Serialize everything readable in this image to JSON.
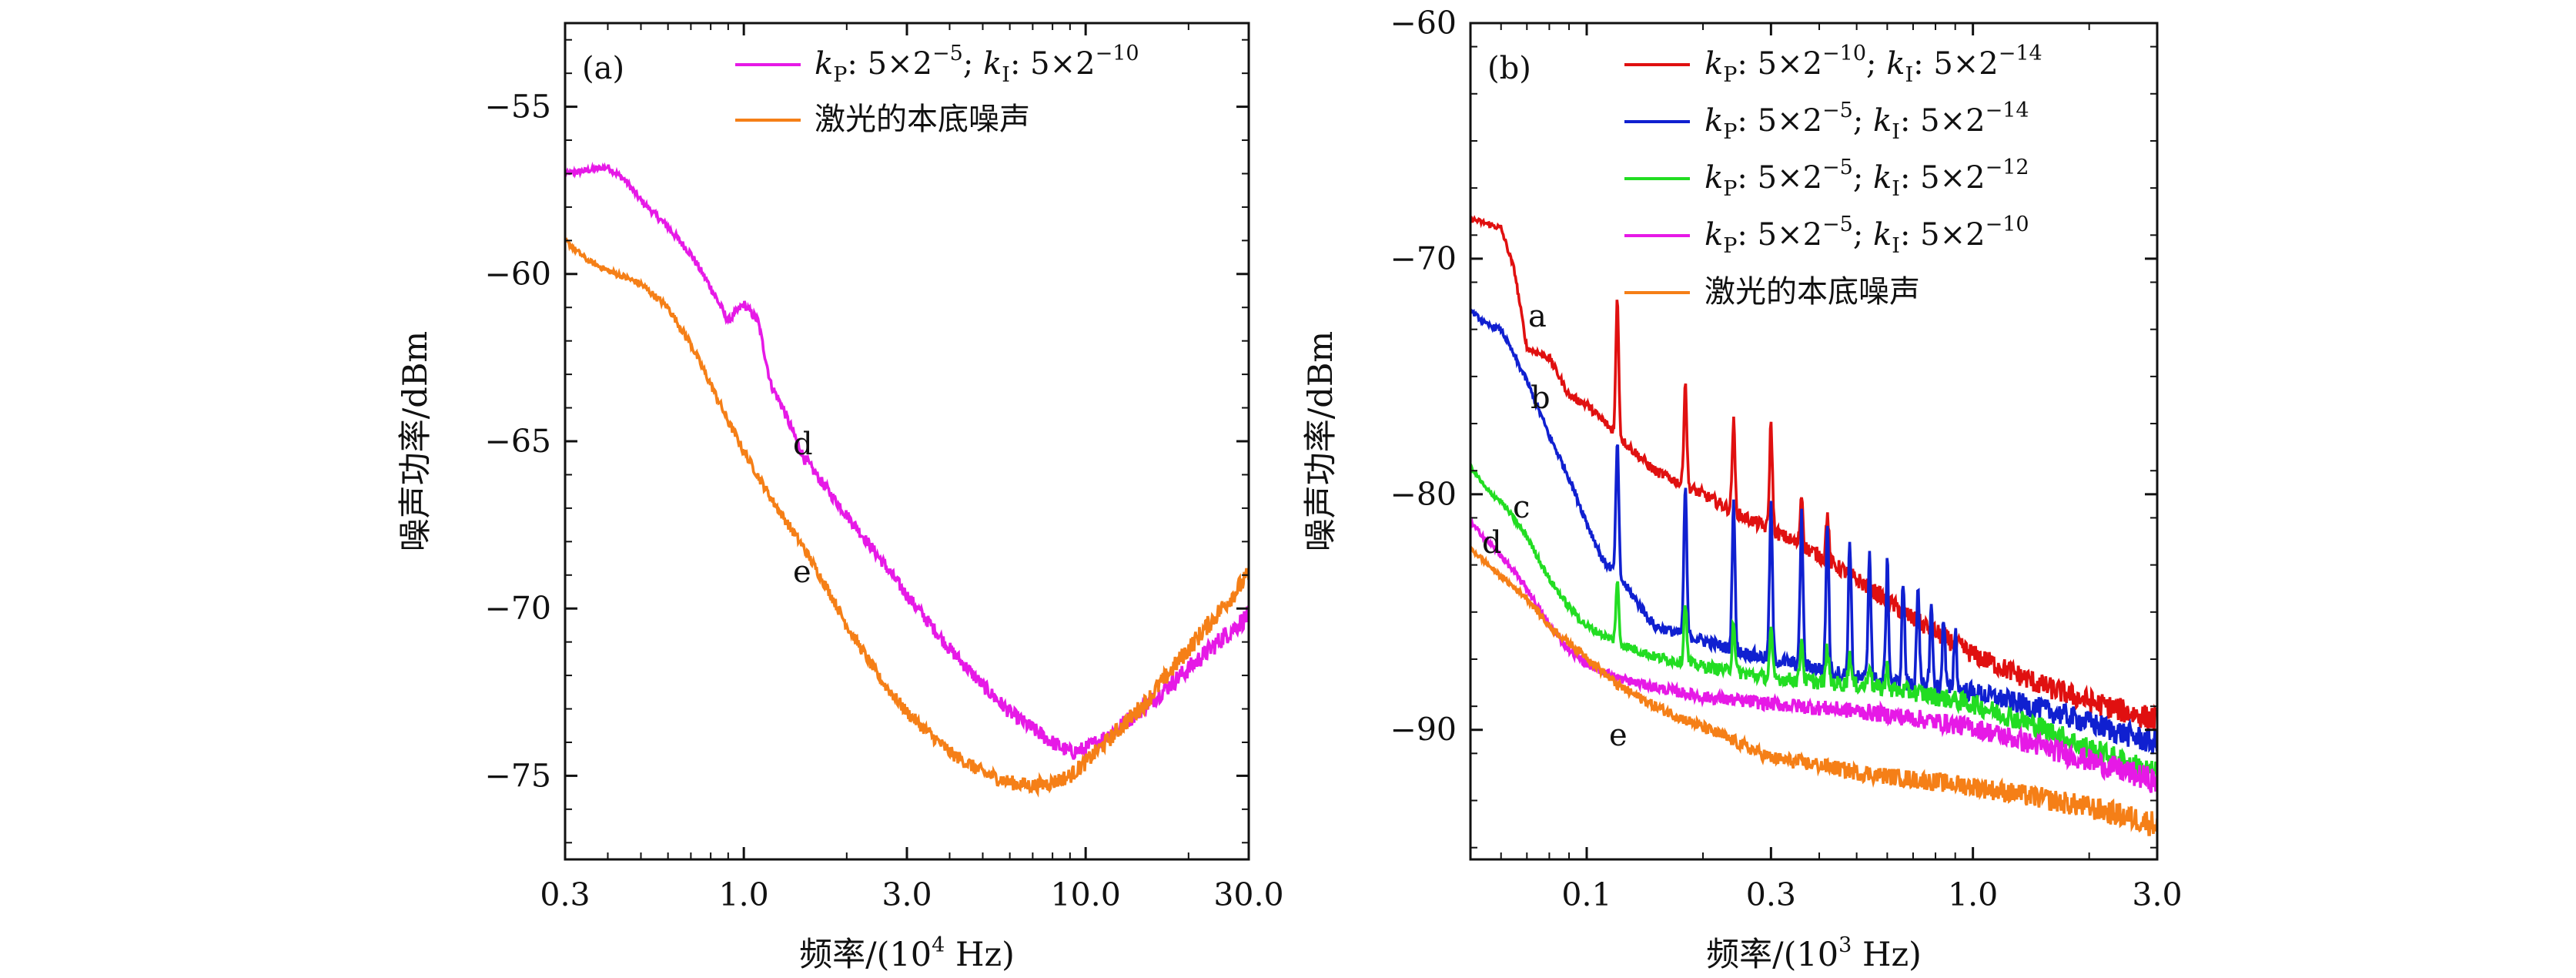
{
  "chart_data": [
    {
      "panel": "(a)",
      "type": "line",
      "xlabel": "频率/(10⁴ Hz)",
      "ylabel": "噪声功率/dBm",
      "xscale": "log",
      "xlim": [
        0.3,
        30.0
      ],
      "ylim": [
        -77.5,
        -52.5
      ],
      "xticks": [
        "0.3",
        "1.0",
        "3.0",
        "10.0",
        "30.0"
      ],
      "yticks": [
        "−55",
        "−60",
        "−65",
        "−70",
        "−75"
      ],
      "legend_position": "top-right",
      "series": [
        {
          "name": "kP: 5×2^−5; kI: 5×2^−10",
          "label": "d",
          "color": "#e619e6",
          "x": [
            0.3,
            0.35,
            0.4,
            0.45,
            0.5,
            0.6,
            0.7,
            0.8,
            0.9,
            1.0,
            1.1,
            1.2,
            1.3,
            1.5,
            1.8,
            2.0,
            2.5,
            3.0,
            4.0,
            5.0,
            6.0,
            7.0,
            8.0,
            9.0,
            10.0,
            12.0,
            15.0,
            20.0,
            25.0,
            30.0
          ],
          "values": [
            -57.0,
            -56.9,
            -56.8,
            -57.2,
            -57.8,
            -58.6,
            -59.4,
            -60.4,
            -61.4,
            -60.9,
            -61.4,
            -63.3,
            -64.0,
            -65.5,
            -66.6,
            -67.2,
            -68.5,
            -69.6,
            -71.2,
            -72.3,
            -73.1,
            -73.6,
            -74.0,
            -74.3,
            -74.2,
            -73.7,
            -72.9,
            -71.8,
            -70.9,
            -70.2
          ]
        },
        {
          "name": "激光的本底噪声",
          "label": "e",
          "color": "#f57f17",
          "x": [
            0.3,
            0.35,
            0.4,
            0.45,
            0.5,
            0.6,
            0.7,
            0.8,
            0.9,
            1.0,
            1.2,
            1.5,
            1.8,
            2.0,
            2.5,
            3.0,
            4.0,
            5.0,
            6.0,
            7.0,
            8.0,
            9.0,
            10.0,
            12.0,
            15.0,
            20.0,
            25.0,
            30.0
          ],
          "values": [
            -59.0,
            -59.6,
            -59.9,
            -60.1,
            -60.3,
            -61.0,
            -62.1,
            -63.3,
            -64.4,
            -65.3,
            -66.7,
            -68.2,
            -69.6,
            -70.5,
            -72.1,
            -73.1,
            -74.3,
            -74.9,
            -75.2,
            -75.3,
            -75.2,
            -75.0,
            -74.6,
            -73.8,
            -72.8,
            -71.2,
            -70.0,
            -69.0
          ]
        }
      ]
    },
    {
      "panel": "(b)",
      "type": "line",
      "xlabel": "频率/(10³ Hz)",
      "ylabel": "噪声功率/dBm",
      "xscale": "log",
      "xlim": [
        0.05,
        3.0
      ],
      "ylim": [
        -95.5,
        -60
      ],
      "xticks": [
        "0.1",
        "0.3",
        "1.0",
        "3.0"
      ],
      "yticks": [
        "−60",
        "−70",
        "−80",
        "−90"
      ],
      "legend_position": "top-right",
      "series": [
        {
          "name": "kP: 5×2^−10; kI: 5×2^−14",
          "label": "a",
          "color": "#e01010",
          "x": [
            0.05,
            0.06,
            0.065,
            0.07,
            0.08,
            0.09,
            0.1,
            0.12,
            0.15,
            0.2,
            0.25,
            0.3,
            0.4,
            0.5,
            0.7,
            1.0,
            1.5,
            2.0,
            3.0
          ],
          "values": [
            -68.3,
            -68.7,
            -70.5,
            -73.8,
            -74.2,
            -75.8,
            -76.2,
            -77.5,
            -79.0,
            -80.0,
            -80.9,
            -81.5,
            -82.6,
            -83.6,
            -85.3,
            -86.8,
            -88.1,
            -88.8,
            -89.6
          ],
          "peaks": [
            0.12,
            0.18,
            0.24,
            0.3,
            0.36,
            0.42
          ]
        },
        {
          "name": "kP: 5×2^−5; kI: 5×2^−14",
          "label": "b",
          "color": "#1020d0",
          "x": [
            0.05,
            0.055,
            0.06,
            0.07,
            0.08,
            0.09,
            0.1,
            0.11,
            0.12,
            0.15,
            0.2,
            0.25,
            0.3,
            0.4,
            0.5,
            0.7,
            1.0,
            1.5,
            2.0,
            3.0
          ],
          "values": [
            -72.2,
            -72.8,
            -73.0,
            -75.2,
            -77.5,
            -79.3,
            -81.2,
            -82.8,
            -83.4,
            -85.6,
            -86.2,
            -86.7,
            -87.0,
            -87.4,
            -87.8,
            -88.1,
            -88.4,
            -89.1,
            -89.7,
            -90.6
          ],
          "peaks": [
            0.12,
            0.18,
            0.24,
            0.3,
            0.36,
            0.42,
            0.48,
            0.54,
            0.6,
            0.66,
            0.72,
            0.78,
            0.84,
            0.9
          ]
        },
        {
          "name": "kP: 5×2^−5; kI: 5×2^−12",
          "label": "c",
          "color": "#22dd22",
          "x": [
            0.05,
            0.055,
            0.06,
            0.07,
            0.08,
            0.09,
            0.1,
            0.12,
            0.15,
            0.2,
            0.3,
            0.5,
            0.7,
            1.0,
            1.5,
            2.0,
            3.0
          ],
          "values": [
            -78.8,
            -79.8,
            -80.3,
            -81.8,
            -83.6,
            -84.8,
            -85.6,
            -86.3,
            -86.9,
            -87.3,
            -87.8,
            -88.1,
            -88.4,
            -88.9,
            -89.9,
            -90.8,
            -91.9
          ],
          "peaks": [
            0.12,
            0.18,
            0.24,
            0.3,
            0.36,
            0.42,
            0.48,
            0.54,
            0.6
          ]
        },
        {
          "name": "kP: 5×2^−5; kI: 5×2^−10",
          "label": "d",
          "color": "#e619e6",
          "x": [
            0.05,
            0.06,
            0.07,
            0.08,
            0.09,
            0.1,
            0.12,
            0.15,
            0.2,
            0.3,
            0.5,
            0.7,
            1.0,
            1.5,
            2.0,
            3.0
          ],
          "values": [
            -81.2,
            -82.6,
            -84.0,
            -85.6,
            -86.6,
            -87.2,
            -87.8,
            -88.2,
            -88.6,
            -88.9,
            -89.2,
            -89.5,
            -89.9,
            -90.7,
            -91.3,
            -92.2
          ]
        },
        {
          "name": "激光的本底噪声",
          "label": "e",
          "color": "#f57f17",
          "x": [
            0.05,
            0.06,
            0.07,
            0.08,
            0.09,
            0.1,
            0.12,
            0.15,
            0.2,
            0.25,
            0.3,
            0.4,
            0.5,
            0.7,
            1.0,
            1.5,
            2.0,
            3.0
          ],
          "values": [
            -82.3,
            -83.5,
            -84.4,
            -85.6,
            -86.3,
            -86.9,
            -88.1,
            -89.0,
            -89.9,
            -90.6,
            -91.2,
            -91.5,
            -91.8,
            -92.1,
            -92.4,
            -92.9,
            -93.3,
            -94.0
          ]
        }
      ]
    }
  ]
}
